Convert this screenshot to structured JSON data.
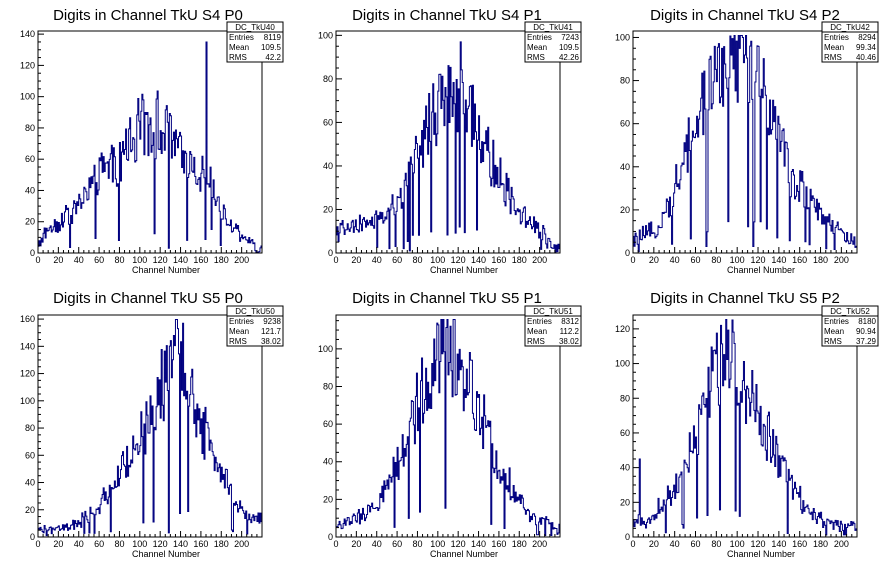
{
  "canvas": {
    "background": "#ffffff",
    "hist_color": "#000080"
  },
  "chart_data": [
    {
      "type": "bar",
      "title": "Digits in Channel TkU S4 P0",
      "xlabel": "Channel Number",
      "ylabel": "",
      "xlim": [
        0,
        220
      ],
      "ylim": [
        0,
        142
      ],
      "xticks": [
        0,
        20,
        40,
        60,
        80,
        100,
        120,
        140,
        160,
        180,
        200
      ],
      "yticks": [
        0,
        20,
        40,
        60,
        80,
        100,
        120,
        140
      ],
      "stats": {
        "name": "DC_TkU40",
        "entries": "8119",
        "mean": "109.5",
        "rms": "42.2"
      },
      "anchors": [
        [
          0,
          5
        ],
        [
          10,
          15
        ],
        [
          20,
          20
        ],
        [
          30,
          25
        ],
        [
          40,
          30
        ],
        [
          50,
          42
        ],
        [
          60,
          50
        ],
        [
          70,
          55
        ],
        [
          80,
          58
        ],
        [
          90,
          72
        ],
        [
          100,
          80
        ],
        [
          110,
          85
        ],
        [
          120,
          82
        ],
        [
          130,
          75
        ],
        [
          140,
          62
        ],
        [
          150,
          60
        ],
        [
          160,
          52
        ],
        [
          170,
          45
        ],
        [
          180,
          25
        ],
        [
          190,
          18
        ],
        [
          200,
          12
        ],
        [
          210,
          6
        ],
        [
          215,
          3
        ]
      ],
      "spikes": [
        [
          128,
          3
        ],
        [
          165,
          135
        ],
        [
          170,
          15
        ]
      ]
    },
    {
      "type": "bar",
      "title": "Digits in Channel TkU S4 P1",
      "xlabel": "Channel Number",
      "ylabel": "",
      "xlim": [
        0,
        220
      ],
      "ylim": [
        0,
        102
      ],
      "xticks": [
        0,
        20,
        40,
        60,
        80,
        100,
        120,
        140,
        160,
        180,
        200
      ],
      "yticks": [
        0,
        20,
        40,
        60,
        80,
        100
      ],
      "stats": {
        "name": "DC_TkU41",
        "entries": "7243",
        "mean": "109.5",
        "rms": "42.26"
      },
      "anchors": [
        [
          0,
          10
        ],
        [
          20,
          12
        ],
        [
          40,
          15
        ],
        [
          55,
          20
        ],
        [
          65,
          25
        ],
        [
          75,
          45
        ],
        [
          80,
          40
        ],
        [
          90,
          58
        ],
        [
          100,
          68
        ],
        [
          110,
          72
        ],
        [
          120,
          70
        ],
        [
          130,
          66
        ],
        [
          140,
          55
        ],
        [
          150,
          45
        ],
        [
          160,
          35
        ],
        [
          170,
          28
        ],
        [
          180,
          20
        ],
        [
          190,
          14
        ],
        [
          200,
          10
        ],
        [
          210,
          5
        ],
        [
          215,
          3
        ]
      ],
      "spikes": [
        [
          52,
          2
        ],
        [
          58,
          3
        ],
        [
          66,
          2
        ],
        [
          72,
          1
        ],
        [
          122,
          97
        ]
      ]
    },
    {
      "type": "bar",
      "title": "Digits in Channel TkU S4 P2",
      "xlabel": "Channel Number",
      "ylabel": "",
      "xlim": [
        0,
        215
      ],
      "ylim": [
        0,
        103
      ],
      "xticks": [
        0,
        20,
        40,
        60,
        80,
        100,
        120,
        140,
        160,
        180,
        200
      ],
      "yticks": [
        0,
        20,
        40,
        60,
        80,
        100
      ],
      "stats": {
        "name": "DC_TkU42",
        "entries": "8294",
        "mean": "99.34",
        "rms": "40.46"
      },
      "anchors": [
        [
          0,
          5
        ],
        [
          10,
          8
        ],
        [
          20,
          10
        ],
        [
          30,
          18
        ],
        [
          40,
          30
        ],
        [
          50,
          45
        ],
        [
          60,
          62
        ],
        [
          70,
          72
        ],
        [
          80,
          82
        ],
        [
          90,
          90
        ],
        [
          100,
          92
        ],
        [
          110,
          85
        ],
        [
          120,
          80
        ],
        [
          130,
          70
        ],
        [
          140,
          55
        ],
        [
          150,
          38
        ],
        [
          160,
          30
        ],
        [
          170,
          25
        ],
        [
          180,
          18
        ],
        [
          190,
          14
        ],
        [
          200,
          10
        ],
        [
          208,
          5
        ]
      ],
      "spikes": [
        [
          70,
          3
        ],
        [
          105,
          100
        ],
        [
          115,
          3
        ],
        [
          185,
          2
        ]
      ]
    },
    {
      "type": "bar",
      "title": "Digits in Channel TkU S5 P0",
      "xlabel": "Channel Number",
      "ylabel": "",
      "xlim": [
        0,
        220
      ],
      "ylim": [
        0,
        163
      ],
      "xticks": [
        0,
        20,
        40,
        60,
        80,
        100,
        120,
        140,
        160,
        180,
        200
      ],
      "yticks": [
        0,
        20,
        40,
        60,
        80,
        100,
        120,
        140,
        160
      ],
      "stats": {
        "name": "DC_TkU50",
        "entries": "9238",
        "mean": "121.7",
        "rms": "38.02"
      },
      "anchors": [
        [
          0,
          5
        ],
        [
          20,
          5
        ],
        [
          40,
          10
        ],
        [
          60,
          22
        ],
        [
          70,
          35
        ],
        [
          80,
          45
        ],
        [
          90,
          60
        ],
        [
          100,
          70
        ],
        [
          110,
          90
        ],
        [
          120,
          105
        ],
        [
          130,
          125
        ],
        [
          135,
          145
        ],
        [
          140,
          135
        ],
        [
          150,
          110
        ],
        [
          160,
          85
        ],
        [
          170,
          70
        ],
        [
          180,
          50
        ],
        [
          190,
          30
        ],
        [
          200,
          20
        ],
        [
          210,
          12
        ],
        [
          215,
          15
        ]
      ],
      "spikes": [
        [
          128,
          3
        ],
        [
          137,
          153
        ]
      ]
    },
    {
      "type": "bar",
      "title": "Digits in Channel TkU S5 P1",
      "xlabel": "Channel Number",
      "ylabel": "",
      "xlim": [
        0,
        220
      ],
      "ylim": [
        0,
        118
      ],
      "xticks": [
        0,
        20,
        40,
        60,
        80,
        100,
        120,
        140,
        160,
        180,
        200
      ],
      "yticks": [
        0,
        20,
        40,
        60,
        80,
        100
      ],
      "stats": {
        "name": "DC_TkU51",
        "entries": "8312",
        "mean": "112.2",
        "rms": "38.02"
      },
      "anchors": [
        [
          0,
          5
        ],
        [
          10,
          8
        ],
        [
          20,
          10
        ],
        [
          30,
          12
        ],
        [
          40,
          18
        ],
        [
          50,
          28
        ],
        [
          60,
          40
        ],
        [
          70,
          55
        ],
        [
          80,
          70
        ],
        [
          90,
          88
        ],
        [
          100,
          100
        ],
        [
          110,
          105
        ],
        [
          120,
          95
        ],
        [
          130,
          85
        ],
        [
          140,
          70
        ],
        [
          150,
          55
        ],
        [
          160,
          40
        ],
        [
          170,
          28
        ],
        [
          180,
          20
        ],
        [
          190,
          12
        ],
        [
          200,
          8
        ],
        [
          210,
          10
        ],
        [
          215,
          5
        ]
      ],
      "spikes": [
        [
          112,
          112
        ]
      ]
    },
    {
      "type": "bar",
      "title": "Digits in Channel TkU S5 P2",
      "xlabel": "Channel Number",
      "ylabel": "",
      "xlim": [
        0,
        215
      ],
      "ylim": [
        0,
        128
      ],
      "xticks": [
        0,
        20,
        40,
        60,
        80,
        100,
        120,
        140,
        160,
        180,
        200
      ],
      "yticks": [
        0,
        20,
        40,
        60,
        80,
        100,
        120
      ],
      "stats": {
        "name": "DC_TkU52",
        "entries": "8180",
        "mean": "90.94",
        "rms": "37.29"
      },
      "anchors": [
        [
          0,
          10
        ],
        [
          10,
          8
        ],
        [
          20,
          12
        ],
        [
          30,
          20
        ],
        [
          40,
          28
        ],
        [
          50,
          42
        ],
        [
          60,
          60
        ],
        [
          70,
          82
        ],
        [
          80,
          100
        ],
        [
          90,
          110
        ],
        [
          100,
          95
        ],
        [
          110,
          85
        ],
        [
          120,
          72
        ],
        [
          130,
          58
        ],
        [
          140,
          45
        ],
        [
          150,
          32
        ],
        [
          160,
          22
        ],
        [
          170,
          15
        ],
        [
          180,
          10
        ],
        [
          190,
          8
        ],
        [
          200,
          6
        ],
        [
          208,
          8
        ]
      ],
      "spikes": [
        [
          6,
          45
        ],
        [
          84,
          122
        ],
        [
          148,
          2
        ]
      ]
    }
  ],
  "stats_labels": {
    "entries": "Entries",
    "mean": "Mean",
    "rms": "RMS"
  }
}
